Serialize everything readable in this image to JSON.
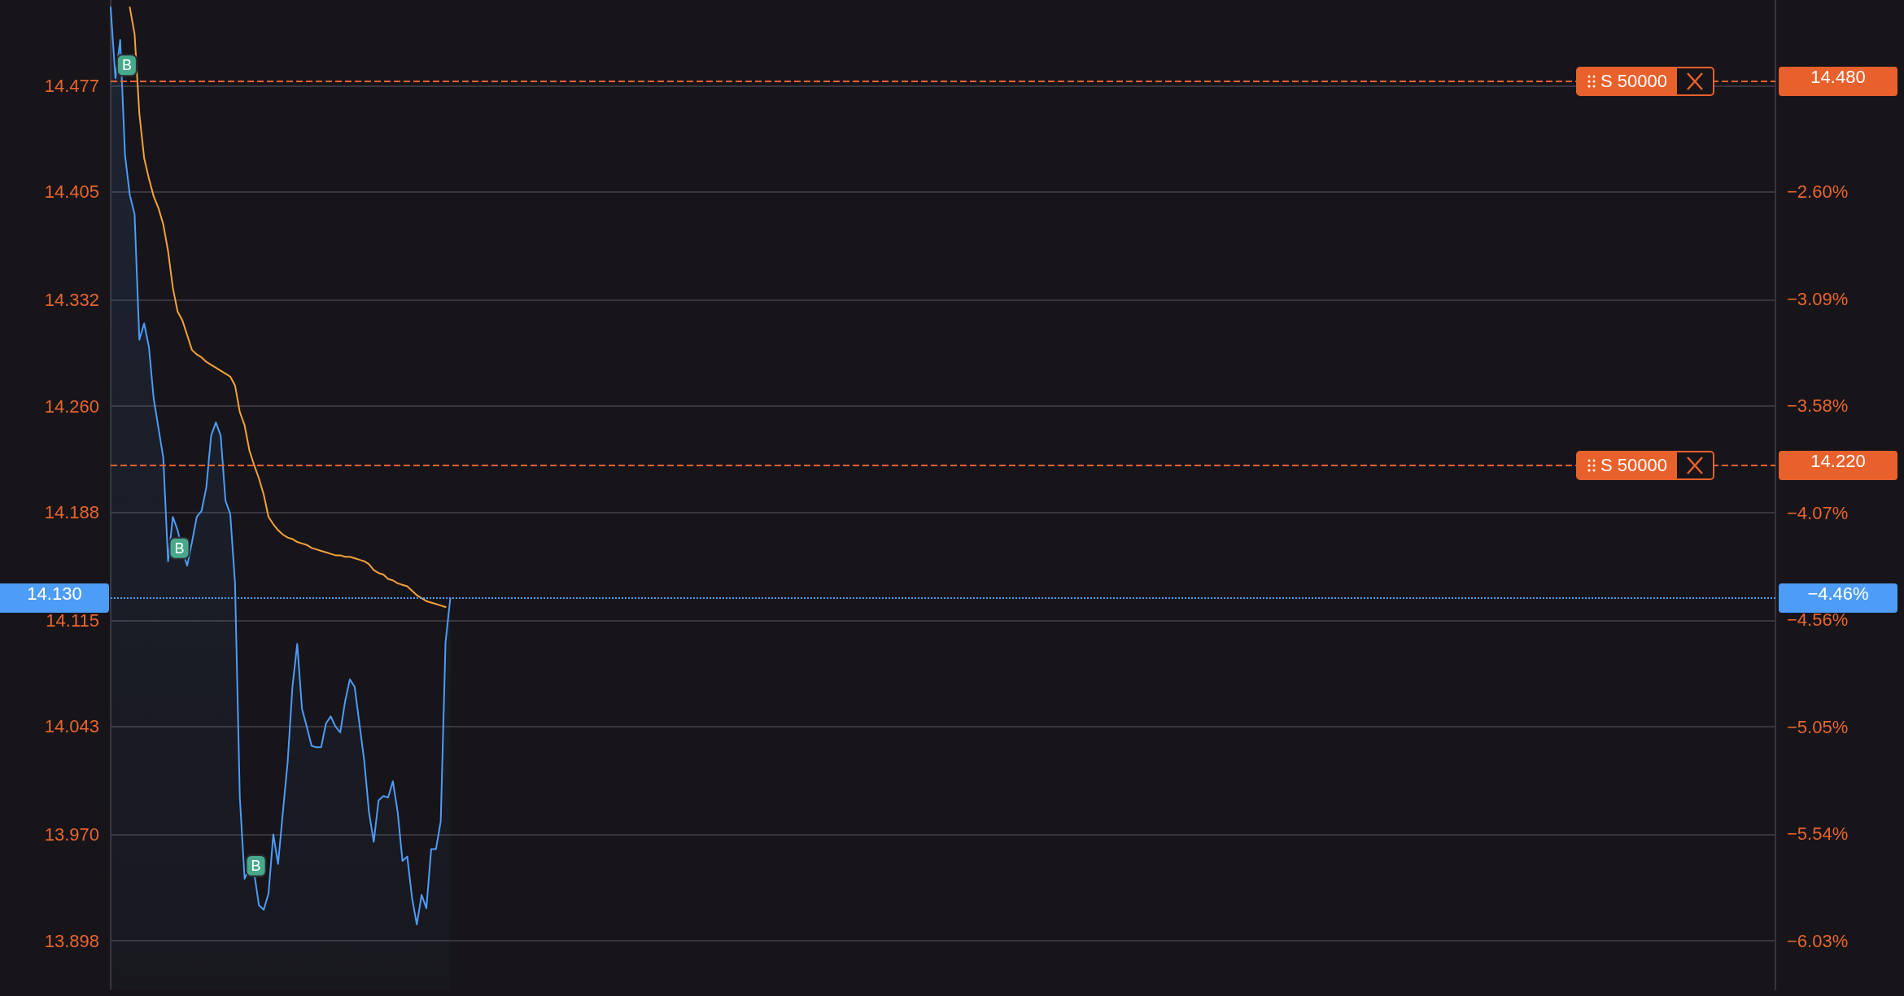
{
  "chart_data": {
    "type": "line",
    "categories": [
      null,
      null,
      null,
      null,
      null,
      null,
      null,
      null,
      null,
      null,
      null,
      null,
      null,
      null,
      null,
      null,
      null,
      null,
      null,
      null,
      null,
      null,
      null,
      null,
      null,
      null,
      null,
      null,
      null,
      null,
      null,
      null,
      null,
      null,
      null,
      null,
      null,
      null,
      null,
      null,
      null,
      null,
      null,
      null,
      null,
      null,
      null,
      null,
      null,
      null,
      null,
      null,
      null,
      null,
      null,
      null,
      null,
      null,
      null,
      null,
      null,
      null,
      null,
      null,
      null,
      null,
      null,
      null,
      null,
      null,
      null,
      null,
      null,
      null,
      null,
      null,
      null,
      null,
      null,
      null,
      null,
      null,
      null,
      null,
      null,
      null,
      null,
      null,
      null,
      null,
      null,
      null,
      null,
      null,
      null,
      null,
      null,
      null,
      null,
      null,
      null,
      null,
      null,
      null,
      null,
      null,
      null,
      null,
      null,
      null,
      null,
      null,
      null,
      null,
      null,
      null,
      null,
      null,
      null,
      null,
      null,
      null,
      null,
      null,
      null,
      null,
      null,
      null,
      null,
      null,
      null,
      null,
      null,
      null,
      null,
      null,
      null,
      null,
      null,
      null,
      null,
      null,
      null,
      null,
      null,
      null,
      null,
      null,
      null,
      null,
      null,
      null,
      null,
      null,
      null,
      null,
      null,
      null,
      null,
      null,
      null,
      null,
      null,
      null,
      null,
      null,
      null,
      null,
      null,
      null,
      null,
      null,
      null,
      null,
      null,
      null,
      null,
      null,
      null,
      null,
      null,
      null,
      null,
      null,
      null,
      null,
      null,
      null,
      null,
      null,
      null,
      null,
      null,
      null,
      null,
      null,
      null,
      null,
      null,
      null,
      null,
      null,
      null,
      null,
      null,
      null,
      null,
      null,
      null,
      null,
      null,
      null,
      null,
      null,
      null,
      null,
      null,
      null,
      null,
      null,
      null,
      null,
      null,
      null,
      null,
      null,
      null,
      null,
      null,
      null,
      null,
      null,
      null,
      null,
      null,
      null,
      null,
      null,
      null,
      null,
      null,
      null,
      null,
      null,
      null,
      null,
      null,
      null,
      null,
      null,
      null,
      null,
      null,
      null,
      null,
      null,
      null,
      null,
      null,
      null,
      null,
      null,
      null,
      null,
      null,
      null,
      null,
      null,
      null,
      null,
      null,
      null,
      null,
      null,
      null,
      null,
      null,
      null,
      null,
      null,
      null,
      null,
      null,
      null,
      null,
      null,
      null,
      null,
      null,
      null,
      null,
      null,
      null,
      null,
      null,
      null,
      null,
      null,
      null,
      null,
      null,
      null,
      null,
      null,
      null,
      null,
      null,
      null,
      null,
      null,
      null,
      null,
      null,
      null,
      null,
      null,
      null,
      null,
      null,
      null,
      null,
      null,
      null,
      null,
      null,
      null,
      null,
      null,
      null,
      null,
      null,
      null,
      null,
      null,
      null,
      null,
      null,
      null,
      null,
      null,
      null,
      null,
      null,
      null,
      null,
      null,
      null,
      null,
      null
    ],
    "series": [
      {
        "type": "area",
        "color": "#4d9cf8",
        "values": [
          14.53,
          14.482,
          14.508,
          14.43,
          14.403,
          14.39,
          14.305,
          14.316,
          14.3,
          14.265,
          14.245,
          14.225,
          14.155,
          14.185,
          14.176,
          14.162,
          14.152,
          14.168,
          14.185,
          14.189,
          14.205,
          14.24,
          14.249,
          14.24,
          14.196,
          14.187,
          14.14,
          13.995,
          13.94,
          13.947,
          13.944,
          13.922,
          13.919,
          13.93,
          13.97,
          13.95,
          13.985,
          14.019,
          14.07,
          14.099,
          14.055,
          14.043,
          14.03,
          14.029,
          14.029,
          14.045,
          14.05,
          14.043,
          14.039,
          14.06,
          14.075,
          14.07,
          14.045,
          14.02,
          13.985,
          13.965,
          13.993,
          13.996,
          13.995,
          14.006,
          13.985,
          13.952,
          13.955,
          13.927,
          13.909,
          13.929,
          13.92,
          13.96,
          13.96,
          13.979,
          14.1,
          14.13,
          null,
          null,
          null,
          null,
          null,
          null,
          null,
          null,
          null,
          null,
          null,
          null,
          null,
          null,
          null,
          null,
          null,
          null,
          null,
          null,
          null,
          null,
          null,
          null,
          null,
          null,
          null,
          null,
          null,
          null,
          null,
          null,
          null,
          null,
          null,
          null,
          null,
          null,
          null,
          null,
          null,
          null,
          null,
          null,
          null,
          null,
          null,
          null,
          null,
          null,
          null,
          null,
          null,
          null,
          null,
          null,
          null,
          null,
          null,
          null,
          null,
          null,
          null,
          null,
          null,
          null,
          null,
          null,
          null,
          null,
          null,
          null,
          null,
          null,
          null,
          null,
          null,
          null,
          null,
          null,
          null,
          null,
          null,
          null,
          null,
          null,
          null,
          null,
          null,
          null,
          null,
          null,
          null,
          null,
          null,
          null,
          null,
          null,
          null,
          null,
          null,
          null,
          null,
          null,
          null,
          null,
          null,
          null,
          null,
          null,
          null,
          null,
          null,
          null,
          null,
          null,
          null,
          null,
          null,
          null,
          null,
          null,
          null,
          null,
          null,
          null,
          null,
          null,
          null,
          null,
          null,
          null,
          null,
          null,
          null,
          null,
          null,
          null,
          null,
          null,
          null,
          null,
          null,
          null,
          null,
          null,
          null,
          null,
          null,
          null,
          null,
          null,
          null,
          null,
          null,
          null,
          null,
          null,
          null,
          null,
          null,
          null,
          null,
          null,
          null,
          null,
          null,
          null,
          null,
          null,
          null,
          null,
          null,
          null,
          null,
          null,
          null,
          null,
          null,
          null,
          null,
          null,
          null,
          null,
          null,
          null,
          null,
          null,
          null,
          null,
          null,
          null,
          null,
          null,
          null,
          null,
          null,
          null,
          null,
          null,
          null,
          null,
          null,
          null,
          null,
          null,
          null,
          null,
          null,
          null,
          null,
          null,
          null,
          null,
          null,
          null,
          null,
          null,
          null,
          null,
          null,
          null,
          null,
          null,
          null,
          null,
          null,
          null,
          null,
          null,
          null,
          null,
          null,
          null,
          null,
          null,
          null,
          null,
          null,
          null,
          null,
          null,
          null,
          null,
          null,
          null,
          null,
          null,
          null,
          null,
          null,
          null,
          null,
          null,
          null,
          null,
          null,
          null,
          null,
          null,
          null,
          null,
          null,
          null,
          null,
          null,
          null,
          null,
          null,
          null,
          null,
          null,
          null,
          null,
          null,
          null,
          null
        ]
      },
      {
        "type": "line",
        "color": "#f5a23a",
        "values": [
          null,
          null,
          null,
          null,
          14.53,
          14.512,
          14.458,
          14.428,
          14.414,
          14.402,
          14.394,
          14.383,
          14.365,
          14.34,
          14.324,
          14.318,
          14.308,
          14.298,
          14.295,
          14.293,
          14.29,
          14.288,
          14.286,
          14.284,
          14.282,
          14.28,
          14.274,
          14.256,
          14.247,
          14.23,
          14.22,
          14.211,
          14.2,
          14.185,
          14.18,
          14.176,
          14.173,
          14.171,
          14.17,
          14.168,
          14.167,
          14.166,
          14.164,
          14.163,
          14.162,
          14.161,
          14.16,
          14.159,
          14.159,
          14.158,
          14.158,
          14.157,
          14.156,
          14.155,
          14.153,
          14.149,
          14.147,
          14.146,
          14.143,
          14.142,
          14.14,
          14.139,
          14.138,
          14.135,
          14.132,
          14.13,
          14.128,
          14.127,
          14.126,
          14.125,
          14.124,
          null,
          null,
          null,
          null,
          null,
          null,
          null,
          null,
          null,
          null,
          null,
          null,
          null,
          null,
          null,
          null,
          null,
          null,
          null,
          null,
          null,
          null,
          null,
          null,
          null,
          null,
          null,
          null,
          null,
          null,
          null,
          null,
          null,
          null,
          null,
          null,
          null,
          null,
          null,
          null,
          null,
          null,
          null,
          null,
          null,
          null,
          null,
          null,
          null,
          null,
          null,
          null,
          null,
          null,
          null,
          null,
          null,
          null,
          null,
          null,
          null,
          null,
          null,
          null,
          null,
          null,
          null,
          null,
          null,
          null,
          null,
          null,
          null,
          null,
          null,
          null,
          null,
          null,
          null,
          null,
          null,
          null,
          null,
          null,
          null,
          null,
          null,
          null,
          null,
          null,
          null,
          null,
          null,
          null,
          null,
          null,
          null,
          null,
          null,
          null,
          null,
          null,
          null,
          null,
          null,
          null,
          null,
          null,
          null,
          null,
          null,
          null,
          null,
          null,
          null,
          null,
          null,
          null,
          null,
          null,
          null,
          null,
          null,
          null,
          null,
          null,
          null,
          null,
          null,
          null,
          null,
          null,
          null,
          null,
          null,
          null,
          null,
          null,
          null,
          null,
          null,
          null,
          null,
          null,
          null,
          null,
          null,
          null,
          null,
          null,
          null,
          null,
          null,
          null,
          null,
          null,
          null,
          null,
          null,
          null,
          null,
          null,
          null,
          null,
          null,
          null,
          null,
          null,
          null,
          null,
          null,
          null,
          null,
          null,
          null,
          null,
          null,
          null,
          null,
          null,
          null,
          null,
          null,
          null,
          null,
          null,
          null,
          null,
          null,
          null,
          null,
          null,
          null,
          null,
          null,
          null,
          null,
          null,
          null,
          null,
          null,
          null,
          null,
          null,
          null,
          null,
          null,
          null,
          null,
          null,
          null,
          null,
          null,
          null,
          null,
          null,
          null,
          null,
          null,
          null,
          null,
          null,
          null,
          null,
          null,
          null,
          null,
          null,
          null,
          null,
          null,
          null,
          null,
          null,
          null,
          null,
          null,
          null,
          null,
          null,
          null,
          null,
          null,
          null,
          null,
          null,
          null,
          null,
          null,
          null,
          null,
          null,
          null,
          null,
          null,
          null,
          null,
          null,
          null,
          null,
          null,
          null,
          null,
          null,
          null,
          null,
          null,
          null,
          null,
          null,
          null,
          null,
          null,
          null,
          null,
          null,
          null,
          null
        ]
      }
    ],
    "ylim": [
      13.865,
      14.535
    ],
    "yticks": [
      {
        "value": 14.477,
        "label": "14.477"
      },
      {
        "value": 14.405,
        "label": "14.405"
      },
      {
        "value": 14.332,
        "label": "14.332"
      },
      {
        "value": 14.26,
        "label": "14.260"
      },
      {
        "value": 14.188,
        "label": "14.188"
      },
      {
        "value": 14.115,
        "label": "14.115"
      },
      {
        "value": 14.043,
        "label": "14.043"
      },
      {
        "value": 13.97,
        "label": "13.970"
      },
      {
        "value": 13.898,
        "label": "13.898"
      }
    ],
    "y2lim": [
      -6.252,
      -1.722
    ],
    "y2ticks": [
      {
        "value": -2.6,
        "label": "−2.60%"
      },
      {
        "value": -3.09,
        "label": "−3.09%"
      },
      {
        "value": -3.58,
        "label": "−3.58%"
      },
      {
        "value": -4.07,
        "label": "−4.07%"
      },
      {
        "value": -4.56,
        "label": "−4.56%"
      },
      {
        "value": -5.05,
        "label": "−5.05%"
      },
      {
        "value": -5.54,
        "label": "−5.54%"
      },
      {
        "value": -6.03,
        "label": "−6.03%"
      }
    ],
    "ref_lines": [
      {
        "axis": "y",
        "value": 14.48,
        "label": "14.480",
        "color": "#e8612c",
        "line_style": "dashed"
      },
      {
        "axis": "y",
        "value": 14.22,
        "label": "14.220",
        "color": "#e8612c",
        "line_style": "dashed"
      },
      {
        "axis": "y",
        "value": 14.13,
        "label": "14.130",
        "color": "#4d9cf8",
        "line_style": "dotted"
      }
    ],
    "annotations": [
      {
        "text": "S 50000",
        "y": 14.48
      },
      {
        "text": "S 50000",
        "y": 14.22
      },
      "−4.46%",
      {
        "text": "B",
        "y": 14.482
      },
      {
        "text": "B",
        "y": 14.155
      },
      {
        "text": "B",
        "y": 13.94
      }
    ],
    "grid": "y",
    "marker": "none",
    "line_style": "solid"
  }
}
